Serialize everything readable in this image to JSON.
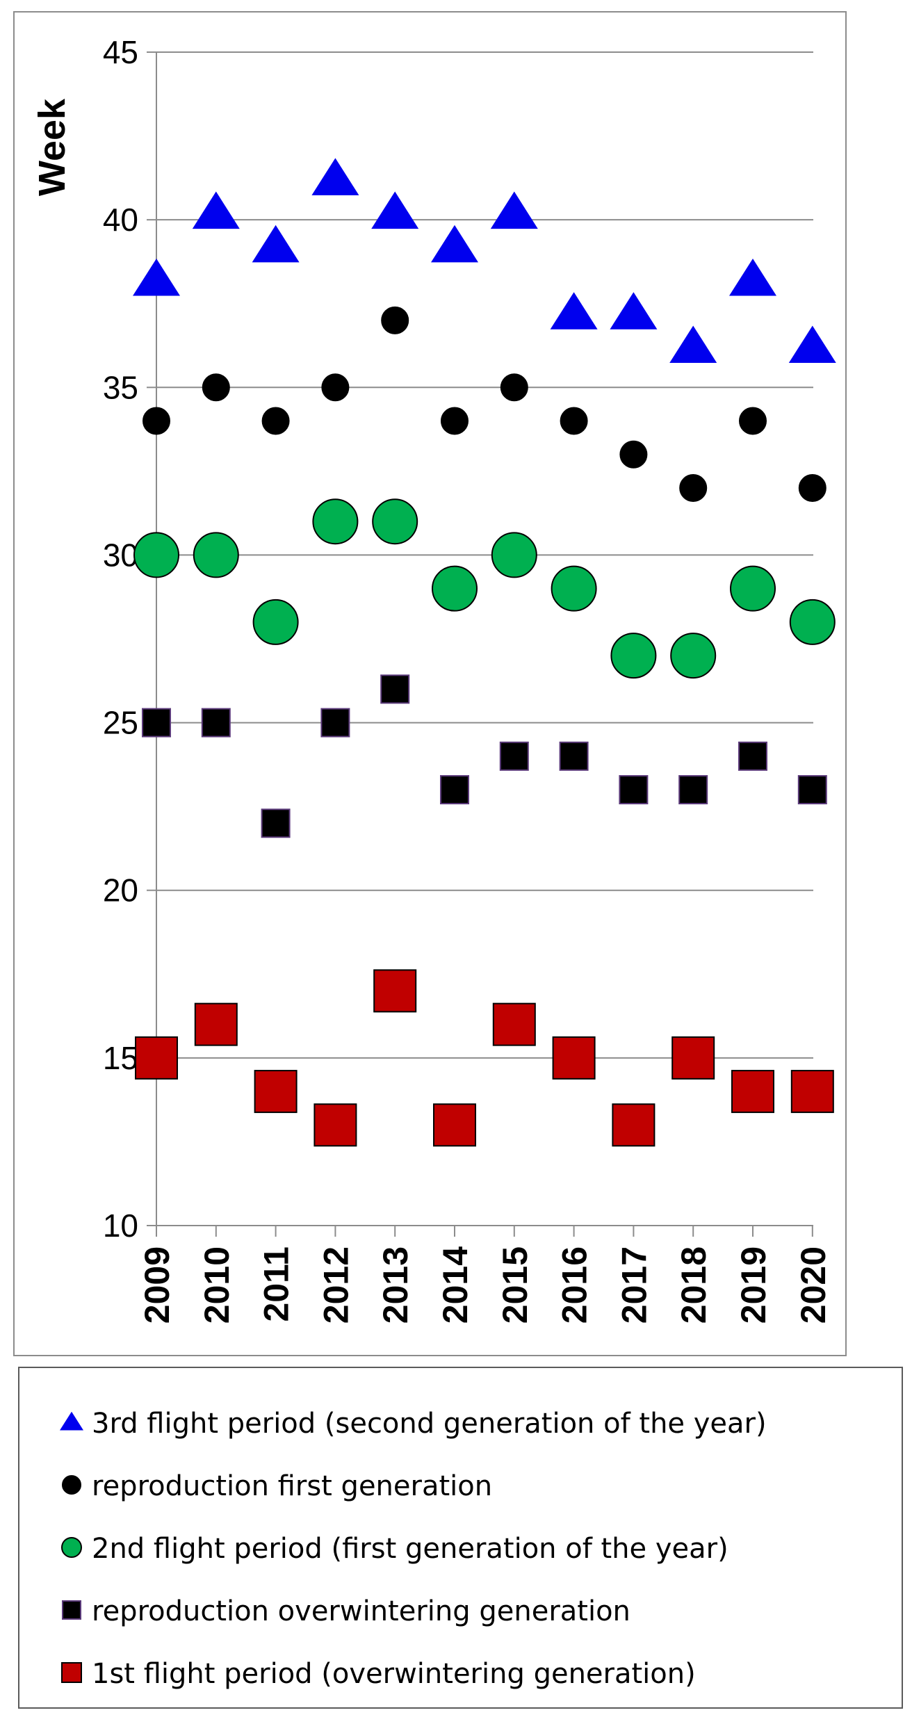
{
  "chart_data": {
    "type": "scatter",
    "ylabel": "Week",
    "xlabel": "",
    "ylim": [
      10,
      45
    ],
    "yticks": [
      "10",
      "15",
      "20",
      "25",
      "30",
      "35",
      "40",
      "45"
    ],
    "categories": [
      "2009",
      "2010",
      "2011",
      "2012",
      "2013",
      "2014",
      "2015",
      "2016",
      "2017",
      "2018",
      "2019",
      "2020"
    ],
    "grid": "horizontal",
    "legend_position": "bottom",
    "series": [
      {
        "name": "3rd flight period  (second generation of the year)",
        "marker": "triangle",
        "color": "#0000ee",
        "values": [
          38,
          40,
          39,
          41,
          40,
          39,
          40,
          37,
          37,
          36,
          38,
          36
        ]
      },
      {
        "name": "reproduction first generation",
        "marker": "circle",
        "color": "#000000",
        "values": [
          34,
          35,
          34,
          35,
          37,
          34,
          35,
          34,
          33,
          32,
          34,
          32
        ]
      },
      {
        "name": "2nd flight period (first generation of the year)",
        "marker": "circle",
        "color": "#00b050",
        "values": [
          30,
          30,
          28,
          31,
          31,
          29,
          30,
          29,
          27,
          27,
          29,
          28
        ]
      },
      {
        "name": "reproduction overwintering generation",
        "marker": "square",
        "color": "#000000",
        "values": [
          25,
          25,
          22,
          25,
          26,
          23,
          24,
          24,
          23,
          23,
          24,
          23
        ]
      },
      {
        "name": "1st flight period (overwintering generation)",
        "marker": "square",
        "color": "#c00000",
        "values": [
          15,
          16,
          14,
          13,
          17,
          13,
          16,
          15,
          13,
          15,
          14,
          14
        ]
      }
    ]
  }
}
